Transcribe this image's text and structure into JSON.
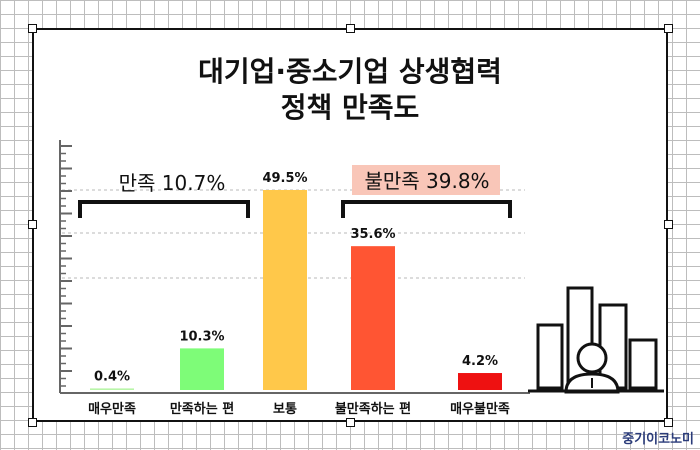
{
  "title_lines": [
    "대기업·중소기업 상생협력",
    "정책 만족도"
  ],
  "watermark": "중기이코노미",
  "chart_data": {
    "type": "bar",
    "title": "대기업·중소기업 상생협력 정책 만족도",
    "categories": [
      "매우만족",
      "만족하는 편",
      "보통",
      "불만족하는 편",
      "매우불만족"
    ],
    "values": [
      0.4,
      10.3,
      49.5,
      35.6,
      4.2
    ],
    "value_labels": [
      "0.4%",
      "10.3%",
      "49.5%",
      "35.6%",
      "4.2%"
    ],
    "colors": [
      "#b8f5a8",
      "#7efc78",
      "#ffc84a",
      "#ff5533",
      "#ee1111"
    ],
    "ylim": [
      0,
      50
    ],
    "grid": true,
    "groups": [
      {
        "label": "만족 10.7%",
        "from": 0,
        "to": 1,
        "highlight": ""
      },
      {
        "label": "불만족 39.8%",
        "from": 3,
        "to": 4,
        "highlight": "#f9c6b8"
      }
    ]
  }
}
